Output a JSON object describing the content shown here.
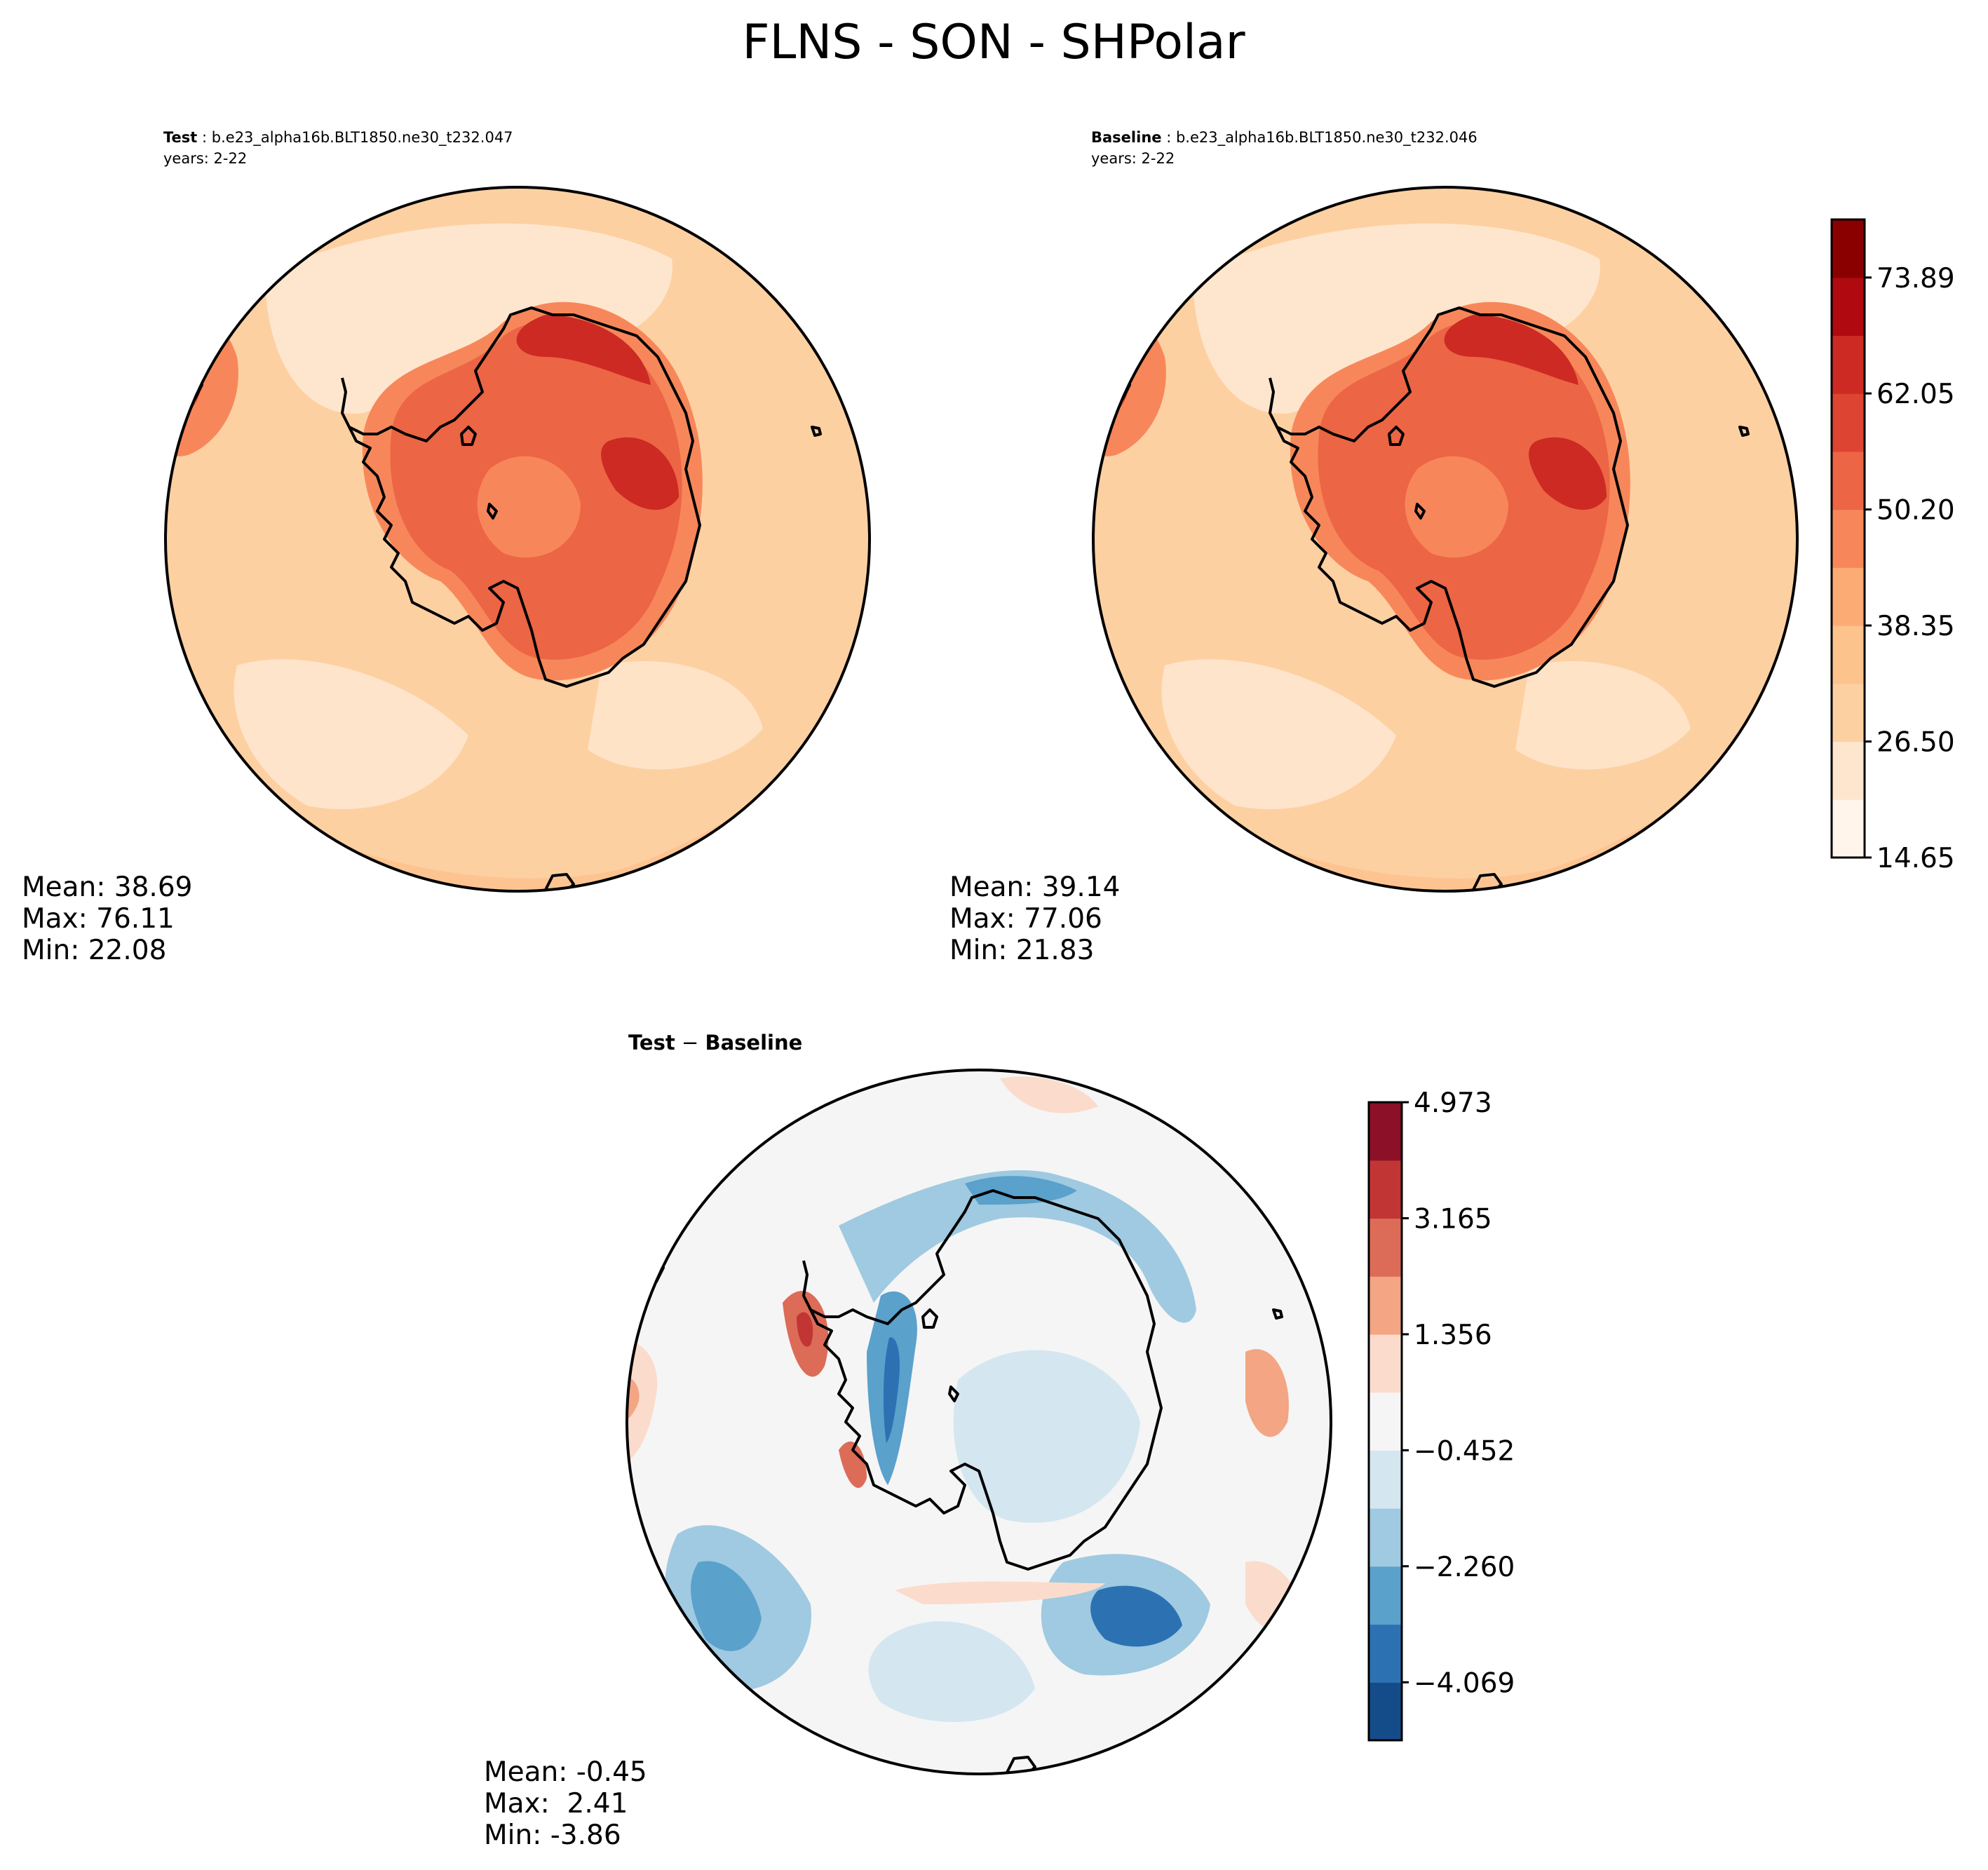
{
  "figure": {
    "title": "FLNS - SON - SHPolar"
  },
  "panels": {
    "test": {
      "label": "Test",
      "case": "b.e23_alpha16b.BLT1850.ne30_t232.047",
      "years": "years: 2-22",
      "stats": [
        "Mean: 38.69",
        "Max: 76.11",
        "Min: 22.08"
      ]
    },
    "baseline": {
      "label": "Baseline",
      "case": "b.e23_alpha16b.BLT1850.ne30_t232.046",
      "years": "years: 2-22",
      "stats": [
        "Mean: 39.14",
        "Max: 77.06",
        "Min: 21.83"
      ]
    },
    "diff": {
      "title_a": "Test",
      "title_op": " − ",
      "title_b": "Baseline",
      "stats": [
        "Mean: -0.45",
        "Max:  2.41",
        "Min: -3.86"
      ]
    }
  },
  "chart_data": [
    {
      "type": "heatmap",
      "name": "Test",
      "projection": "south-polar-stereographic",
      "mean": 38.69,
      "max": 76.11,
      "min": 22.08,
      "colormap": "Reds"
    },
    {
      "type": "heatmap",
      "name": "Baseline",
      "projection": "south-polar-stereographic",
      "mean": 39.14,
      "max": 77.06,
      "min": 21.83,
      "colormap": "Reds"
    },
    {
      "type": "heatmap",
      "name": "Test − Baseline",
      "projection": "south-polar-stereographic",
      "mean": -0.45,
      "max": 2.41,
      "min": -3.86,
      "colormap": "RdBu_r"
    }
  ],
  "colorbars": {
    "main": {
      "levels": [
        14.65,
        20.575,
        26.5,
        32.425,
        38.35,
        44.275,
        50.2,
        56.125,
        62.05,
        67.97,
        73.89,
        79.82
      ],
      "tick_labels": [
        "14.65",
        "26.50",
        "38.35",
        "50.20",
        "62.05",
        "73.89"
      ],
      "colors": [
        "#fff5eb",
        "#fee6ce",
        "#fdd0a2",
        "#fdc38d",
        "#fcab75",
        "#f7875a",
        "#ec6545",
        "#dd4431",
        "#cd2a24",
        "#b0090f",
        "#8a0000"
      ]
    },
    "diff": {
      "levels": [
        -4.973,
        -4.069,
        -3.165,
        -2.26,
        -1.356,
        -0.452,
        0.452,
        1.356,
        2.26,
        3.165,
        4.069,
        4.973
      ],
      "tick_labels": [
        "−4.069",
        "−2.260",
        "−0.452",
        "1.356",
        "3.165",
        "4.973"
      ],
      "colors": [
        "#144c8a",
        "#2c72b3",
        "#5aa1cc",
        "#9fcae1",
        "#d4e6f0",
        "#f5f5f5",
        "#fbdccc",
        "#f3a584",
        "#dc6c58",
        "#c23535",
        "#8c1028"
      ]
    }
  }
}
